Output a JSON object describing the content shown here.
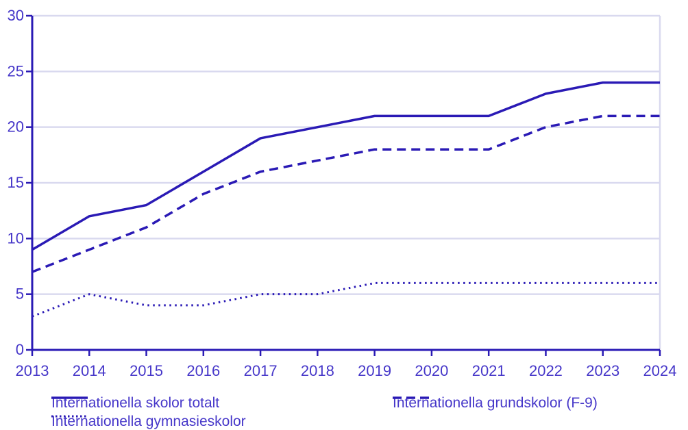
{
  "chart_data": {
    "type": "line",
    "x": [
      2013,
      2014,
      2015,
      2016,
      2017,
      2018,
      2019,
      2020,
      2021,
      2022,
      2023,
      2024
    ],
    "series": [
      {
        "name": "Internationella skolor totalt",
        "style": "solid",
        "values": [
          9,
          12,
          13,
          16,
          19,
          20,
          21,
          21,
          21,
          23,
          24,
          24
        ]
      },
      {
        "name": "Internationella grundskolor (F-9)",
        "style": "dashed",
        "values": [
          7,
          9,
          11,
          14,
          16,
          17,
          18,
          18,
          18,
          20,
          21,
          21
        ]
      },
      {
        "name": "Internationella gymnasieskolor",
        "style": "dotted",
        "values": [
          3,
          5,
          4,
          4,
          5,
          5,
          6,
          6,
          6,
          6,
          6,
          6
        ]
      }
    ],
    "title": "",
    "xlabel": "",
    "ylabel": "",
    "ylim": [
      0,
      30
    ],
    "ytick_step": 5,
    "yticks": [
      0,
      5,
      10,
      15,
      20,
      25,
      30
    ],
    "grid": true,
    "legend_position": "bottom",
    "colors": {
      "line": "#2a1ab5",
      "text": "#4637c9",
      "grid": "#d9d9ef",
      "background": "#ffffff"
    }
  }
}
